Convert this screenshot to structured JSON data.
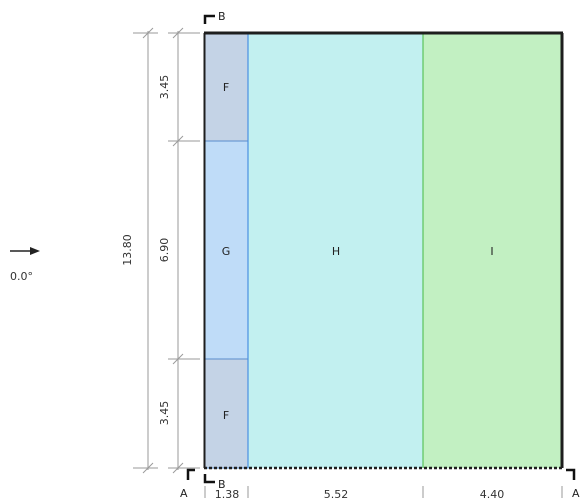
{
  "colors": {
    "F": "#c4d3e6",
    "G": "#bfdcf8",
    "H": "#c2f0f0",
    "I": "#c2f0c2",
    "outline": "#1e1e1e",
    "division_GH": "#4a90e2",
    "division_HI": "#5cc35c"
  },
  "direction": {
    "label": "0.0°",
    "icon": "arrow-right-icon"
  },
  "zones": [
    {
      "id": "F-top",
      "label": "F"
    },
    {
      "id": "G",
      "label": "G"
    },
    {
      "id": "F-bottom",
      "label": "F"
    },
    {
      "id": "H",
      "label": "H"
    },
    {
      "id": "I",
      "label": "I"
    }
  ],
  "vertical_dims": {
    "total": "13.80",
    "segments": [
      "3.45",
      "6.90",
      "3.45"
    ]
  },
  "horizontal_dims": {
    "segments": [
      "1.38",
      "5.52",
      "4.40"
    ]
  },
  "section_marks": {
    "top": "B",
    "bottom": "B",
    "left": "A",
    "right": "A"
  }
}
